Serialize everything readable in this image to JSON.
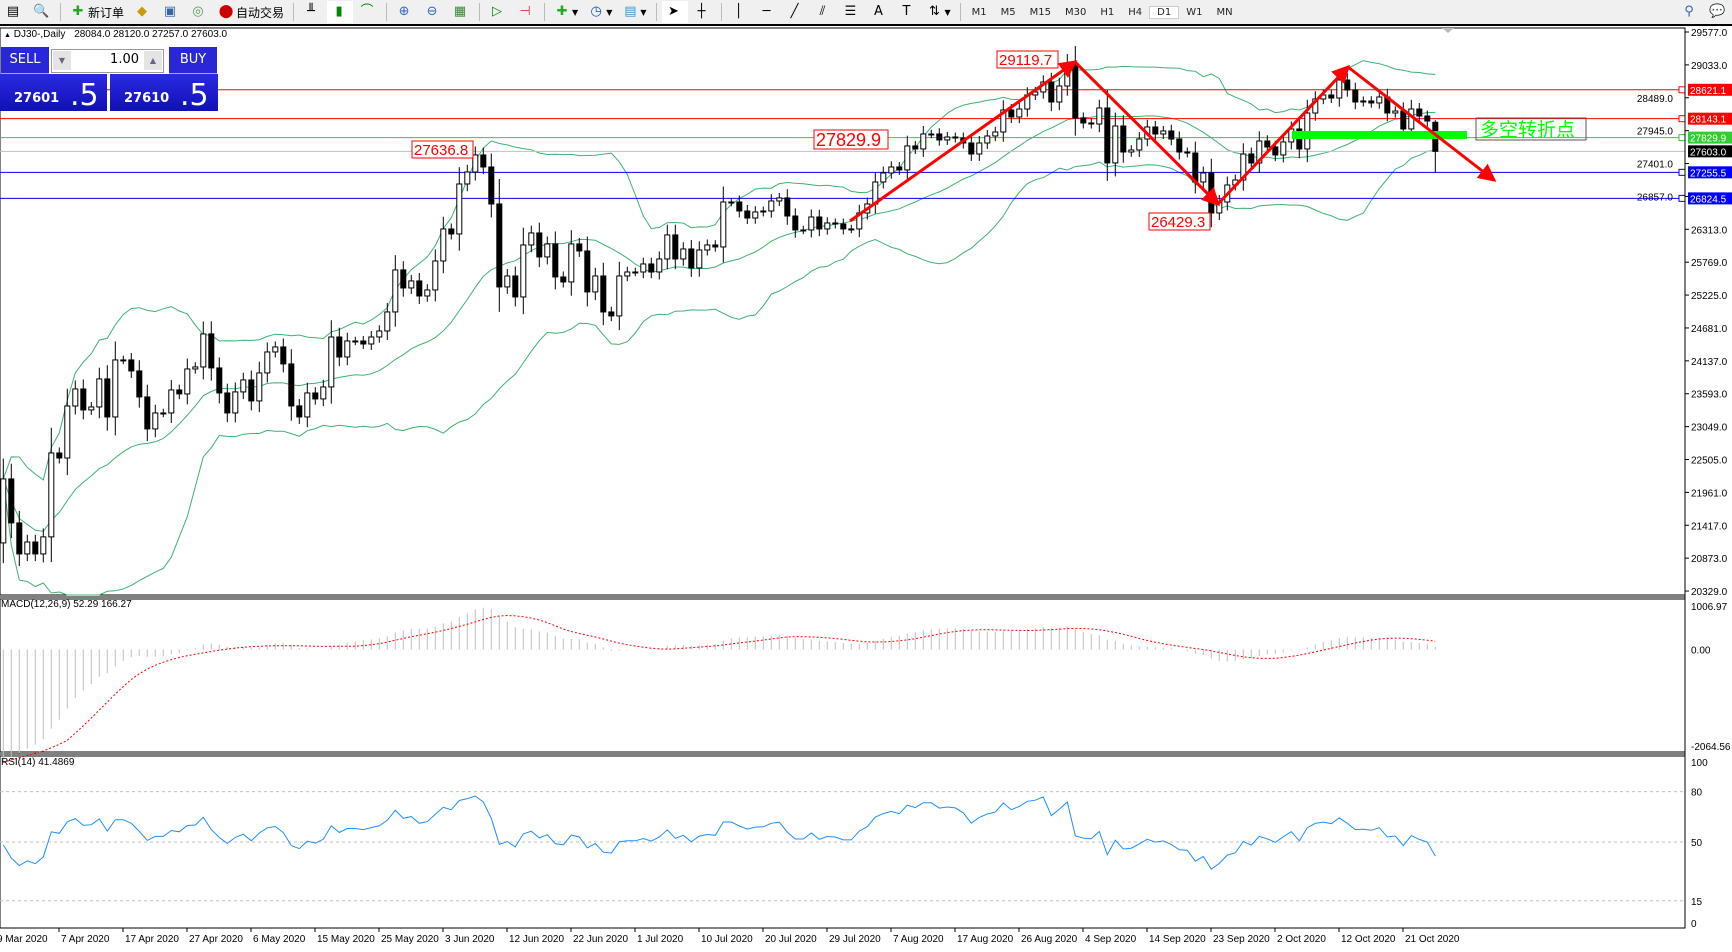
{
  "toolbar": {
    "new_order_label": "新订单",
    "auto_trading_label": "自动交易",
    "timeframes": [
      "M1",
      "M5",
      "M15",
      "M30",
      "H1",
      "H4",
      "D1",
      "W1",
      "MN"
    ],
    "active_timeframe": "D1"
  },
  "quote_header": {
    "symbol": "DJ30-,Daily",
    "ohlc": "28084.0 28120.0 27257.0 27603.0"
  },
  "one_click": {
    "sell_label": "SELL",
    "buy_label": "BUY",
    "lot": "1.00",
    "sell_price_main": "27601",
    "sell_price_big": ".5",
    "buy_price_main": "27610",
    "buy_price_big": ".5"
  },
  "annotations": {
    "peak1": "29119.7",
    "trough": "26429.3",
    "level_mid": "27829.9",
    "level_left": "27636.8",
    "turn_point": "多空转折点"
  },
  "colors": {
    "bullish_body": "#ffffff",
    "bearish_body": "#000000",
    "bollinger": "#3cb371",
    "annotation_red": "#ff0000",
    "turn_green": "#00ff00",
    "macd_hist": "#c0c0c0",
    "macd_signal": "#ff0000",
    "rsi_line": "#1e90ff",
    "resistance_line": "#ff0000",
    "support_line": "#0000ff",
    "pivot_line": "#32cd32",
    "bid_line": "#c0c0c0"
  },
  "chart_data": [
    {
      "type": "candlestick",
      "symbol": "DJ30-",
      "timeframe": "Daily",
      "last_bar": {
        "open": 28084.0,
        "high": 28120.0,
        "low": 27257.0,
        "close": 27603.0
      },
      "closes": [
        22184,
        21456,
        20943,
        21140,
        20943,
        21225,
        22613,
        22530,
        23390,
        23672,
        23325,
        23374,
        23838,
        23209,
        24152,
        24152,
        23970,
        23540,
        23011,
        23275,
        23275,
        23656,
        23590,
        24003,
        24036,
        24582,
        24020,
        23606,
        23275,
        23623,
        23821,
        23474,
        23937,
        24284,
        24367,
        24086,
        23391,
        23209,
        23606,
        23507,
        23705,
        24532,
        24201,
        24466,
        24466,
        24416,
        24532,
        24631,
        24946,
        25641,
        25343,
        25459,
        25210,
        25310,
        25789,
        26319,
        26236,
        27063,
        27261,
        27543,
        27344,
        26732,
        25360,
        25541,
        25194,
        26054,
        26253,
        25856,
        26071,
        25525,
        25442,
        26071,
        25955,
        25277,
        25541,
        24946,
        24880,
        25541,
        25607,
        25607,
        25740,
        25607,
        25822,
        26220,
        25822,
        25988,
        25674,
        25971,
        26054,
        26021,
        26765,
        26765,
        26616,
        26500,
        26600,
        26616,
        26782,
        26832,
        26533,
        26302,
        26302,
        26517,
        26319,
        26418,
        26401,
        26319,
        26319,
        26583,
        26732,
        27096,
        27245,
        27344,
        27295,
        27692,
        27642,
        27890,
        27890,
        27791,
        27840,
        27824,
        27741,
        27559,
        27741,
        27857,
        27923,
        28287,
        28171,
        28303,
        28535,
        28585,
        28750,
        28419,
        28684,
        29050,
        28155,
        28072,
        28055,
        28320,
        27411,
        28022,
        27592,
        27625,
        27807,
        28006,
        27890,
        27940,
        27807,
        27592,
        27575,
        27096,
        27245,
        26583,
        26765,
        27046,
        27129,
        27559,
        27410,
        27774,
        27675,
        27543,
        27758,
        27973,
        27642,
        28237,
        28469,
        28535,
        28485,
        28783,
        28618,
        28419,
        28436,
        28403,
        28502,
        28237,
        28270,
        27973,
        28303,
        28187,
        28105,
        27603
      ],
      "first_open": 21125,
      "y_ticks": [
        "29577.0",
        "29033.0",
        "28489.0",
        "27945.0",
        "27401.0",
        "26857.0",
        "26313.0",
        "25769.0",
        "25225.0",
        "24681.0",
        "24137.0",
        "23593.0",
        "23049.0",
        "22505.0",
        "21961.0",
        "21417.0",
        "20873.0",
        "20329.0"
      ],
      "ylim": [
        20329.0,
        29577.0
      ],
      "horizontal_lines": [
        {
          "price": 28621.1,
          "label": "28621.1",
          "color": "#ff0000"
        },
        {
          "price": 28143.1,
          "label": "28143.1",
          "color": "#ff0000"
        },
        {
          "price": 27829.9,
          "label": "27829.9",
          "color": "#32cd32"
        },
        {
          "price": 27603.0,
          "label": "27603.0",
          "color": "#c0c0c0",
          "label_bg": "#000000"
        },
        {
          "price": 27255.5,
          "label": "27255.5",
          "color": "#0000ff"
        },
        {
          "price": 26824.5,
          "label": "26824.5",
          "color": "#0000ff"
        }
      ],
      "overlay": "Bollinger Bands",
      "x_tick_labels": [
        "9 Mar 2020",
        "7 Apr 2020",
        "17 Apr 2020",
        "27 Apr 2020",
        "6 May 2020",
        "15 May 2020",
        "25 May 2020",
        "3 Jun 2020",
        "12 Jun 2020",
        "22 Jun 2020",
        "1 Jul 2020",
        "10 Jul 2020",
        "20 Jul 2020",
        "29 Jul 2020",
        "7 Aug 2020",
        "17 Aug 2020",
        "26 Aug 2020",
        "4 Sep 2020",
        "14 Sep 2020",
        "23 Sep 2020",
        "2 Oct 2020",
        "12 Oct 2020",
        "21 Oct 2020"
      ]
    },
    {
      "type": "bar",
      "title": "MACD(12,26,9) 52.29 166.27",
      "y_ticks": [
        "1006.97",
        "0.00",
        "-2064.56"
      ],
      "ylim": [
        -2064.56,
        1006.97
      ]
    },
    {
      "type": "line",
      "title": "RSI(14) 41.4869",
      "y_ticks": [
        "100",
        "80",
        "50",
        "15",
        "0"
      ],
      "levels": [
        80,
        50,
        15
      ],
      "ylim": [
        0,
        100
      ]
    }
  ]
}
